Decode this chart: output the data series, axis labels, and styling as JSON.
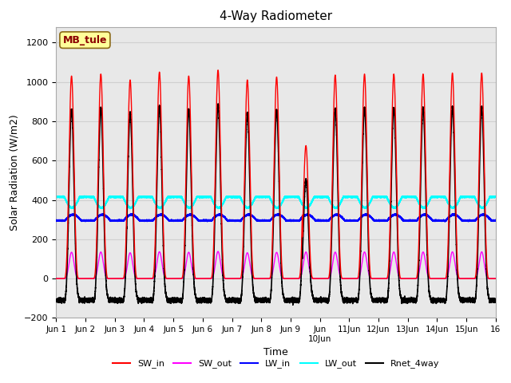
{
  "title": "4-Way Radiometer",
  "xlabel": "Time",
  "ylabel": "Solar Radiation (W/m2)",
  "ylim": [
    -200,
    1280
  ],
  "yticks": [
    -200,
    0,
    200,
    400,
    600,
    800,
    1000,
    1200
  ],
  "xlim_days": [
    0,
    15
  ],
  "annotation_text": "MB_tule",
  "series": {
    "SW_in": {
      "color": "#FF0000",
      "lw": 1.0,
      "label": "SW_in"
    },
    "SW_out": {
      "color": "#FF00FF",
      "lw": 1.0,
      "label": "SW_out"
    },
    "LW_in": {
      "color": "#0000FF",
      "lw": 1.2,
      "label": "LW_in"
    },
    "LW_out": {
      "color": "#00FFFF",
      "lw": 1.2,
      "label": "LW_out"
    },
    "Rnet": {
      "color": "#000000",
      "lw": 1.2,
      "label": "Rnet_4way"
    }
  },
  "grid_color": "#D0D0D0",
  "bg_color": "#E8E8E8",
  "figure_bg": "#FFFFFF",
  "sw_peaks": [
    1030,
    1040,
    1010,
    1050,
    1030,
    1060,
    1010,
    1025,
    1040,
    1035,
    1040,
    1040,
    1040,
    1045,
    1045
  ],
  "sw_peak_day9_scale": 0.65,
  "sw_out_ratio": 0.13,
  "lw_in_base": 295,
  "lw_in_diurnal": 30,
  "lw_out_base": 415,
  "lw_out_diurnal": 55,
  "rnet_night": -110,
  "sunrise": 0.258,
  "sunset": 0.788
}
